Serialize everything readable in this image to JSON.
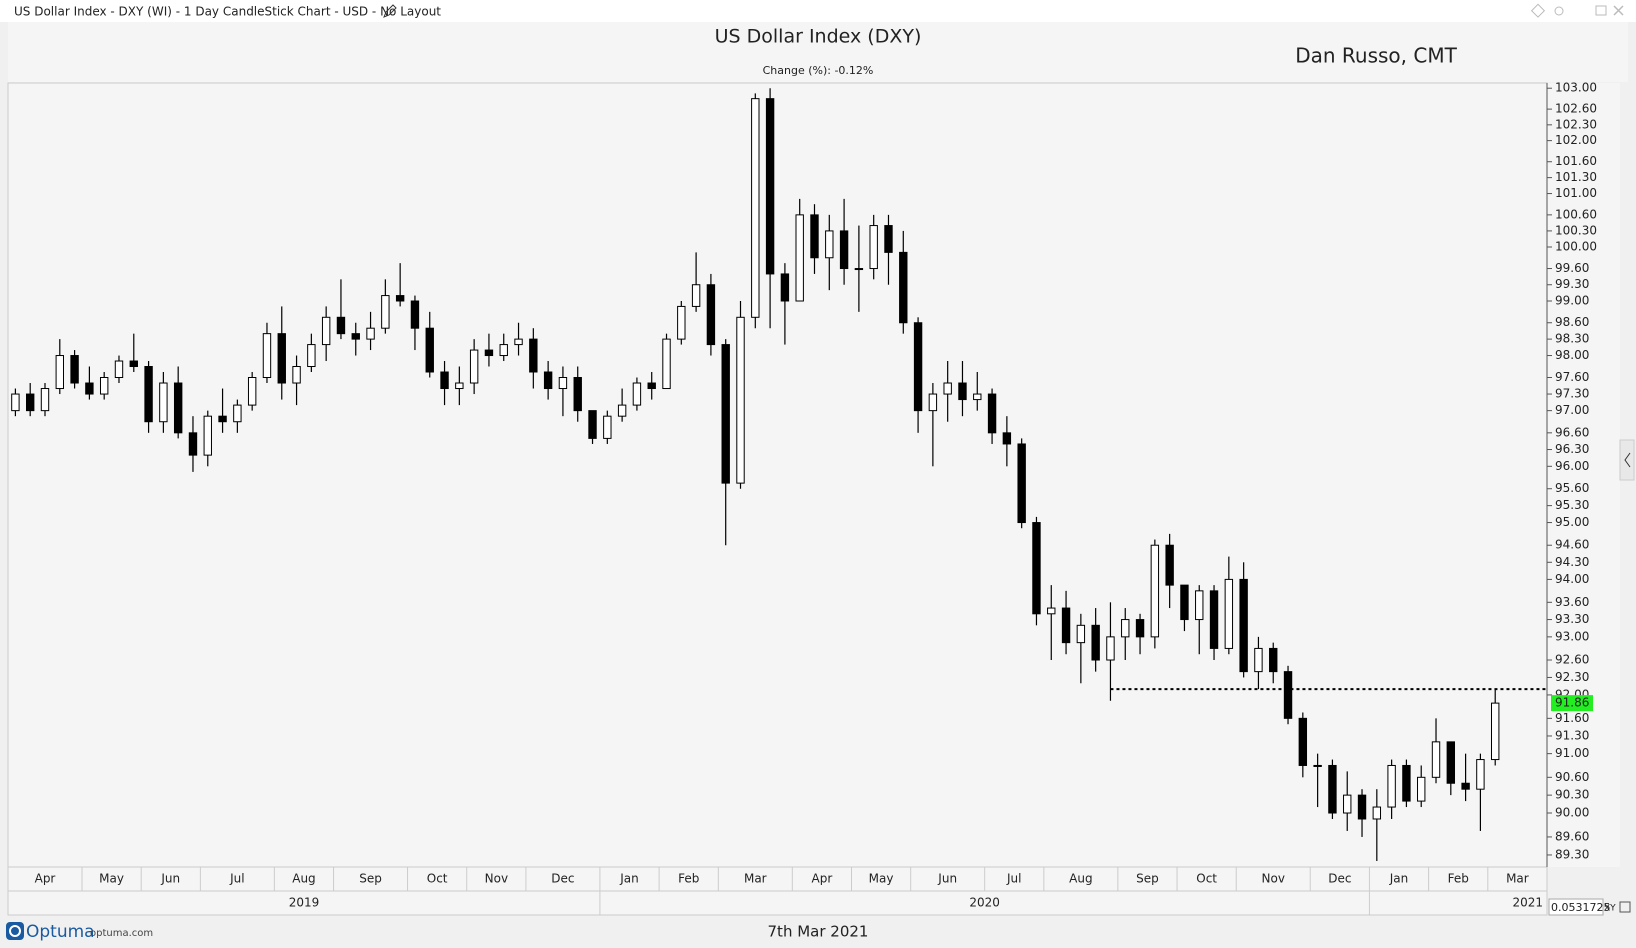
{
  "ui": {
    "window_title": "US Dollar Index - DXY (WI) - 1 Day CandleStick Chart - USD - No Layout",
    "brand": "Optuma",
    "brand_url": "optuma.com",
    "footer_date": "7th Mar 2021",
    "scale_value": "0.0531725",
    "scale_mode": "XY"
  },
  "chart_data": {
    "type": "candlestick",
    "title": "US Dollar Index (DXY)",
    "subtitle": "Change (%): -0.12%",
    "author": "Dan Russo, CMT",
    "categories": [
      "Apr",
      null,
      null,
      null,
      null,
      "May",
      null,
      null,
      null,
      "Jun",
      null,
      null,
      null,
      "Jul",
      null,
      null,
      null,
      null,
      "Aug",
      null,
      null,
      null,
      "Sep",
      null,
      null,
      null,
      null,
      "Oct",
      null,
      null,
      null,
      "Nov",
      null,
      null,
      null,
      "Dec",
      null,
      null,
      null,
      null,
      "Jan",
      null,
      null,
      null,
      "Feb",
      null,
      null,
      null,
      "Mar",
      null,
      null,
      null,
      null,
      "Apr",
      null,
      null,
      null,
      "May",
      null,
      null,
      null,
      "Jun",
      null,
      null,
      null,
      null,
      "Jul",
      null,
      null,
      null,
      "Aug",
      null,
      null,
      null,
      null,
      "Sep",
      null,
      null,
      null,
      "Oct",
      null,
      null,
      null,
      "Nov",
      null,
      null,
      null,
      null,
      "Dec",
      null,
      null,
      null,
      "Jan",
      null,
      null,
      null,
      "Feb",
      null,
      null,
      null,
      "Mar"
    ],
    "years": [
      "2019",
      "2020",
      "2021"
    ],
    "values": [
      [
        97.0,
        97.4,
        96.9,
        97.3
      ],
      [
        97.3,
        97.5,
        96.9,
        97.0
      ],
      [
        97.0,
        97.5,
        96.9,
        97.4
      ],
      [
        97.4,
        98.3,
        97.3,
        98.0
      ],
      [
        98.0,
        98.1,
        97.4,
        97.5
      ],
      [
        97.5,
        97.8,
        97.2,
        97.3
      ],
      [
        97.3,
        97.7,
        97.2,
        97.6
      ],
      [
        97.6,
        98.0,
        97.5,
        97.9
      ],
      [
        97.9,
        98.4,
        97.7,
        97.8
      ],
      [
        97.8,
        97.9,
        96.6,
        96.8
      ],
      [
        96.8,
        97.7,
        96.6,
        97.5
      ],
      [
        97.5,
        97.8,
        96.5,
        96.6
      ],
      [
        96.6,
        96.9,
        95.9,
        96.2
      ],
      [
        96.2,
        97.0,
        96.0,
        96.9
      ],
      [
        96.9,
        97.4,
        96.6,
        96.8
      ],
      [
        96.8,
        97.2,
        96.6,
        97.1
      ],
      [
        97.1,
        97.7,
        97.0,
        97.6
      ],
      [
        97.6,
        98.6,
        97.5,
        98.4
      ],
      [
        98.4,
        98.9,
        97.2,
        97.5
      ],
      [
        97.5,
        98.0,
        97.1,
        97.8
      ],
      [
        97.8,
        98.4,
        97.7,
        98.2
      ],
      [
        98.2,
        98.9,
        97.9,
        98.7
      ],
      [
        98.7,
        99.4,
        98.3,
        98.4
      ],
      [
        98.4,
        98.6,
        98.0,
        98.3
      ],
      [
        98.3,
        98.8,
        98.1,
        98.5
      ],
      [
        98.5,
        99.4,
        98.4,
        99.1
      ],
      [
        99.1,
        99.7,
        98.9,
        99.0
      ],
      [
        99.0,
        99.1,
        98.1,
        98.5
      ],
      [
        98.5,
        98.8,
        97.6,
        97.7
      ],
      [
        97.7,
        97.9,
        97.1,
        97.4
      ],
      [
        97.4,
        97.8,
        97.1,
        97.5
      ],
      [
        97.5,
        98.3,
        97.3,
        98.1
      ],
      [
        98.1,
        98.4,
        97.8,
        98.0
      ],
      [
        98.0,
        98.4,
        97.9,
        98.2
      ],
      [
        98.2,
        98.6,
        98.0,
        98.3
      ],
      [
        98.3,
        98.5,
        97.4,
        97.7
      ],
      [
        97.7,
        97.9,
        97.2,
        97.4
      ],
      [
        97.4,
        97.8,
        96.9,
        97.6
      ],
      [
        97.6,
        97.8,
        96.8,
        97.0
      ],
      [
        97.0,
        97.0,
        96.4,
        96.5
      ],
      [
        96.5,
        97.0,
        96.4,
        96.9
      ],
      [
        96.9,
        97.4,
        96.8,
        97.1
      ],
      [
        97.1,
        97.6,
        97.0,
        97.5
      ],
      [
        97.5,
        97.7,
        97.2,
        97.4
      ],
      [
        97.4,
        98.4,
        97.4,
        98.3
      ],
      [
        98.3,
        99.0,
        98.2,
        98.9
      ],
      [
        98.9,
        99.9,
        98.8,
        99.3
      ],
      [
        99.3,
        99.5,
        98.0,
        98.2
      ],
      [
        98.2,
        98.3,
        94.6,
        95.7
      ],
      [
        95.7,
        99.0,
        95.6,
        98.7
      ],
      [
        98.7,
        102.9,
        98.5,
        102.8
      ],
      [
        102.8,
        103.0,
        98.5,
        99.5
      ],
      [
        99.5,
        99.7,
        98.2,
        99.0
      ],
      [
        99.0,
        100.9,
        99.0,
        100.6
      ],
      [
        100.6,
        100.8,
        99.5,
        99.8
      ],
      [
        99.8,
        100.6,
        99.2,
        100.3
      ],
      [
        100.3,
        100.9,
        99.3,
        99.6
      ],
      [
        99.6,
        100.4,
        98.8,
        99.6
      ],
      [
        99.6,
        100.6,
        99.4,
        100.4
      ],
      [
        100.4,
        100.6,
        99.3,
        99.9
      ],
      [
        99.9,
        100.3,
        98.4,
        98.6
      ],
      [
        98.6,
        98.7,
        96.6,
        97.0
      ],
      [
        97.0,
        97.5,
        96.0,
        97.3
      ],
      [
        97.3,
        97.9,
        96.8,
        97.5
      ],
      [
        97.5,
        97.9,
        96.9,
        97.2
      ],
      [
        97.2,
        97.7,
        97.0,
        97.3
      ],
      [
        97.3,
        97.4,
        96.4,
        96.6
      ],
      [
        96.6,
        96.9,
        96.0,
        96.4
      ],
      [
        96.4,
        96.5,
        94.9,
        95.0
      ],
      [
        95.0,
        95.1,
        93.2,
        93.4
      ],
      [
        93.4,
        93.9,
        92.6,
        93.5
      ],
      [
        93.5,
        93.8,
        92.7,
        92.9
      ],
      [
        92.9,
        93.4,
        92.2,
        93.2
      ],
      [
        93.2,
        93.5,
        92.4,
        92.6
      ],
      [
        92.6,
        93.6,
        91.9,
        93.0
      ],
      [
        93.0,
        93.5,
        92.6,
        93.3
      ],
      [
        93.3,
        93.4,
        92.7,
        93.0
      ],
      [
        93.0,
        94.7,
        92.8,
        94.6
      ],
      [
        94.6,
        94.8,
        93.5,
        93.9
      ],
      [
        93.9,
        93.9,
        93.1,
        93.3
      ],
      [
        93.3,
        93.9,
        92.7,
        93.8
      ],
      [
        93.8,
        93.9,
        92.6,
        92.8
      ],
      [
        92.8,
        94.4,
        92.7,
        94.0
      ],
      [
        94.0,
        94.3,
        92.3,
        92.4
      ],
      [
        92.4,
        93.0,
        92.1,
        92.8
      ],
      [
        92.8,
        92.9,
        92.2,
        92.4
      ],
      [
        92.4,
        92.5,
        91.5,
        91.6
      ],
      [
        91.6,
        91.7,
        90.6,
        90.8
      ],
      [
        90.8,
        91.0,
        90.1,
        90.8
      ],
      [
        90.8,
        90.9,
        89.9,
        90.0
      ],
      [
        90.0,
        90.7,
        89.7,
        90.3
      ],
      [
        90.3,
        90.4,
        89.6,
        89.9
      ],
      [
        89.9,
        90.4,
        89.2,
        90.1
      ],
      [
        90.1,
        90.9,
        89.9,
        90.8
      ],
      [
        90.8,
        90.9,
        90.1,
        90.2
      ],
      [
        90.2,
        90.8,
        90.1,
        90.6
      ],
      [
        90.6,
        91.6,
        90.5,
        91.2
      ],
      [
        91.2,
        91.2,
        90.3,
        90.5
      ],
      [
        90.5,
        91.0,
        90.2,
        90.4
      ],
      [
        90.4,
        91.0,
        89.7,
        90.9
      ],
      [
        90.9,
        92.1,
        90.8,
        91.86
      ]
    ],
    "color_up": "#ffffff",
    "color_down": "#000000",
    "last_price": 91.86,
    "last_price_color": "#22ee22",
    "level_line": {
      "value": 92.1,
      "color": "#000000"
    },
    "log_scale": true,
    "ylim": [
      89.1,
      103.1
    ],
    "yticks": [
      {
        "value": 103,
        "label": "103.00"
      },
      {
        "value": 102.6,
        "label": "102.60"
      },
      {
        "value": 102.3,
        "label": "102.30"
      },
      {
        "value": 102,
        "label": "102.00"
      },
      {
        "value": 101.6,
        "label": "101.60"
      },
      {
        "value": 101.3,
        "label": "101.30"
      },
      {
        "value": 101,
        "label": "101.00"
      },
      {
        "value": 100.6,
        "label": "100.60"
      },
      {
        "value": 100.3,
        "label": "100.30"
      },
      {
        "value": 100,
        "label": "100.00"
      },
      {
        "value": 99.6,
        "label": "99.60"
      },
      {
        "value": 99.3,
        "label": "99.30"
      },
      {
        "value": 99,
        "label": "99.00"
      },
      {
        "value": 98.6,
        "label": "98.60"
      },
      {
        "value": 98.3,
        "label": "98.30"
      },
      {
        "value": 98,
        "label": "98.00"
      },
      {
        "value": 97.6,
        "label": "97.60"
      },
      {
        "value": 97.3,
        "label": "97.30"
      },
      {
        "value": 97,
        "label": "97.00"
      },
      {
        "value": 96.6,
        "label": "96.60"
      },
      {
        "value": 96.3,
        "label": "96.30"
      },
      {
        "value": 96,
        "label": "96.00"
      },
      {
        "value": 95.6,
        "label": "95.60"
      },
      {
        "value": 95.3,
        "label": "95.30"
      },
      {
        "value": 95,
        "label": "95.00"
      },
      {
        "value": 94.6,
        "label": "94.60"
      },
      {
        "value": 94.3,
        "label": "94.30"
      },
      {
        "value": 94,
        "label": "94.00"
      },
      {
        "value": 93.6,
        "label": "93.60"
      },
      {
        "value": 93.3,
        "label": "93.30"
      },
      {
        "value": 93,
        "label": "93.00"
      },
      {
        "value": 92.6,
        "label": "92.60"
      },
      {
        "value": 92.3,
        "label": "92.30"
      },
      {
        "value": 92,
        "label": "92.00"
      },
      {
        "value": 91.6,
        "label": "91.60"
      },
      {
        "value": 91.3,
        "label": "91.30"
      },
      {
        "value": 91,
        "label": "91.00"
      },
      {
        "value": 90.6,
        "label": "90.60"
      },
      {
        "value": 90.3,
        "label": "90.30"
      },
      {
        "value": 90,
        "label": "90.00"
      },
      {
        "value": 89.6,
        "label": "89.60"
      },
      {
        "value": 89.3,
        "label": "89.30"
      }
    ]
  }
}
